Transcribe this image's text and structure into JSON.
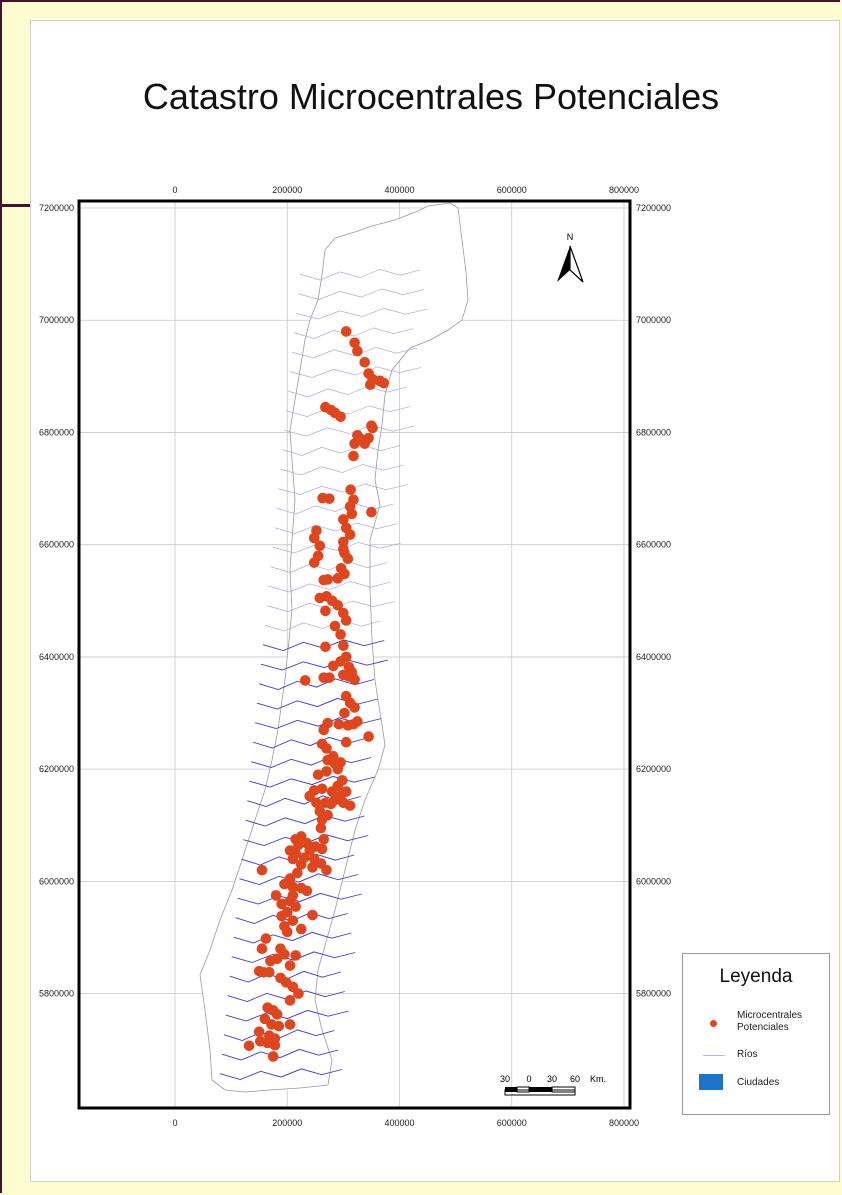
{
  "title": "Catastro Microcentrales Potenciales",
  "map_axes": {
    "x_ticks": [
      "0",
      "200000",
      "400000",
      "600000",
      "800000"
    ],
    "y_ticks": [
      "7200000",
      "7000000",
      "6800000",
      "6600000",
      "6400000",
      "6200000",
      "6000000",
      "5800000"
    ]
  },
  "north_arrow": {
    "label": "N",
    "icon": "north-arrow-icon"
  },
  "scale_bar": {
    "labels": [
      "30",
      "0",
      "30",
      "60"
    ],
    "unit": "Km."
  },
  "legend": {
    "title": "Leyenda",
    "items": [
      {
        "label_line1": "Microcentrales",
        "label_line2": "Potenciales",
        "symbol": "red-dot",
        "color": "#e0461e"
      },
      {
        "label": "Ríos",
        "symbol": "thin-line",
        "color": "#b9b9e8"
      },
      {
        "label": "Ciudades",
        "symbol": "blue-box",
        "color": "#1e74c8"
      }
    ]
  },
  "colors": {
    "points": "#e0461e",
    "rivers": "#3b3bd0",
    "frame": "#000000",
    "grid": "#bdbdbd"
  },
  "points": [
    [
      305000,
      6980000
    ],
    [
      320000,
      6960000
    ],
    [
      325000,
      6945000
    ],
    [
      338000,
      6925000
    ],
    [
      345000,
      6905000
    ],
    [
      352000,
      6895000
    ],
    [
      365000,
      6892000
    ],
    [
      348000,
      6885000
    ],
    [
      372000,
      6888000
    ],
    [
      268000,
      6845000
    ],
    [
      278000,
      6840000
    ],
    [
      285000,
      6835000
    ],
    [
      295000,
      6828000
    ],
    [
      350000,
      6812000
    ],
    [
      352000,
      6808000
    ],
    [
      325000,
      6795000
    ],
    [
      332000,
      6788000
    ],
    [
      345000,
      6790000
    ],
    [
      320000,
      6780000
    ],
    [
      338000,
      6780000
    ],
    [
      318000,
      6758000
    ],
    [
      263000,
      6683000
    ],
    [
      275000,
      6682000
    ],
    [
      313000,
      6698000
    ],
    [
      318000,
      6680000
    ],
    [
      312000,
      6668000
    ],
    [
      350000,
      6658000
    ],
    [
      315000,
      6655000
    ],
    [
      300000,
      6645000
    ],
    [
      252000,
      6625000
    ],
    [
      248000,
      6612000
    ],
    [
      305000,
      6630000
    ],
    [
      312000,
      6618000
    ],
    [
      300000,
      6605000
    ],
    [
      258000,
      6598000
    ],
    [
      300000,
      6592000
    ],
    [
      302000,
      6585000
    ],
    [
      308000,
      6575000
    ],
    [
      255000,
      6580000
    ],
    [
      248000,
      6568000
    ],
    [
      296000,
      6558000
    ],
    [
      302000,
      6548000
    ],
    [
      290000,
      6540000
    ],
    [
      272000,
      6538000
    ],
    [
      265000,
      6537000
    ],
    [
      258000,
      6505000
    ],
    [
      280000,
      6500000
    ],
    [
      270000,
      6508000
    ],
    [
      290000,
      6492000
    ],
    [
      300000,
      6478000
    ],
    [
      305000,
      6465000
    ],
    [
      268000,
      6482000
    ],
    [
      285000,
      6455000
    ],
    [
      295000,
      6440000
    ],
    [
      300000,
      6420000
    ],
    [
      268000,
      6418000
    ],
    [
      305000,
      6400000
    ],
    [
      295000,
      6392000
    ],
    [
      282000,
      6384000
    ],
    [
      310000,
      6382000
    ],
    [
      315000,
      6373000
    ],
    [
      300000,
      6368000
    ],
    [
      310000,
      6365000
    ],
    [
      320000,
      6360000
    ],
    [
      275000,
      6363000
    ],
    [
      265000,
      6363000
    ],
    [
      232000,
      6358000
    ],
    [
      305000,
      6330000
    ],
    [
      312000,
      6318000
    ],
    [
      320000,
      6310000
    ],
    [
      302000,
      6300000
    ],
    [
      292000,
      6280000
    ],
    [
      272000,
      6282000
    ],
    [
      265000,
      6270000
    ],
    [
      308000,
      6278000
    ],
    [
      318000,
      6280000
    ],
    [
      325000,
      6285000
    ],
    [
      345000,
      6258000
    ],
    [
      305000,
      6248000
    ],
    [
      262000,
      6245000
    ],
    [
      270000,
      6237000
    ],
    [
      282000,
      6223000
    ],
    [
      272000,
      6216000
    ],
    [
      285000,
      6210000
    ],
    [
      295000,
      6212000
    ],
    [
      290000,
      6200000
    ],
    [
      270000,
      6196000
    ],
    [
      255000,
      6190000
    ],
    [
      298000,
      6180000
    ],
    [
      290000,
      6170000
    ],
    [
      248000,
      6162000
    ],
    [
      262000,
      6165000
    ],
    [
      280000,
      6160000
    ],
    [
      295000,
      6152000
    ],
    [
      305000,
      6160000
    ],
    [
      240000,
      6152000
    ],
    [
      252000,
      6140000
    ],
    [
      268000,
      6140000
    ],
    [
      278000,
      6138000
    ],
    [
      285000,
      6145000
    ],
    [
      300000,
      6140000
    ],
    [
      312000,
      6135000
    ],
    [
      258000,
      6125000
    ],
    [
      262000,
      6110000
    ],
    [
      272000,
      6118000
    ],
    [
      260000,
      6095000
    ],
    [
      265000,
      6075000
    ],
    [
      225000,
      6080000
    ],
    [
      215000,
      6075000
    ],
    [
      220000,
      6065000
    ],
    [
      235000,
      6068000
    ],
    [
      240000,
      6055000
    ],
    [
      250000,
      6062000
    ],
    [
      262000,
      6058000
    ],
    [
      205000,
      6055000
    ],
    [
      215000,
      6050000
    ],
    [
      230000,
      6042000
    ],
    [
      248000,
      6040000
    ],
    [
      260000,
      6032000
    ],
    [
      225000,
      6030000
    ],
    [
      210000,
      6040000
    ],
    [
      245000,
      6025000
    ],
    [
      270000,
      6020000
    ],
    [
      218000,
      6015000
    ],
    [
      155000,
      6020000
    ],
    [
      205000,
      6005000
    ],
    [
      195000,
      5995000
    ],
    [
      210000,
      5990000
    ],
    [
      225000,
      5988000
    ],
    [
      235000,
      5983000
    ],
    [
      210000,
      5975000
    ],
    [
      180000,
      5975000
    ],
    [
      205000,
      5965000
    ],
    [
      190000,
      5960000
    ],
    [
      215000,
      5955000
    ],
    [
      200000,
      5945000
    ],
    [
      190000,
      5938000
    ],
    [
      245000,
      5940000
    ],
    [
      210000,
      5930000
    ],
    [
      195000,
      5920000
    ],
    [
      225000,
      5915000
    ],
    [
      200000,
      5910000
    ],
    [
      162000,
      5898000
    ],
    [
      155000,
      5880000
    ],
    [
      188000,
      5880000
    ],
    [
      195000,
      5870000
    ],
    [
      215000,
      5868000
    ],
    [
      170000,
      5858000
    ],
    [
      182000,
      5862000
    ],
    [
      205000,
      5850000
    ],
    [
      150000,
      5840000
    ],
    [
      158000,
      5838000
    ],
    [
      168000,
      5838000
    ],
    [
      188000,
      5828000
    ],
    [
      198000,
      5820000
    ],
    [
      210000,
      5812000
    ],
    [
      220000,
      5800000
    ],
    [
      205000,
      5788000
    ],
    [
      165000,
      5775000
    ],
    [
      175000,
      5770000
    ],
    [
      182000,
      5763000
    ],
    [
      160000,
      5755000
    ],
    [
      172000,
      5745000
    ],
    [
      185000,
      5742000
    ],
    [
      205000,
      5745000
    ],
    [
      150000,
      5732000
    ],
    [
      168000,
      5725000
    ],
    [
      178000,
      5720000
    ],
    [
      152000,
      5715000
    ],
    [
      132000,
      5707000
    ],
    [
      165000,
      5712000
    ],
    [
      178000,
      5708000
    ],
    [
      175000,
      5688000
    ]
  ]
}
